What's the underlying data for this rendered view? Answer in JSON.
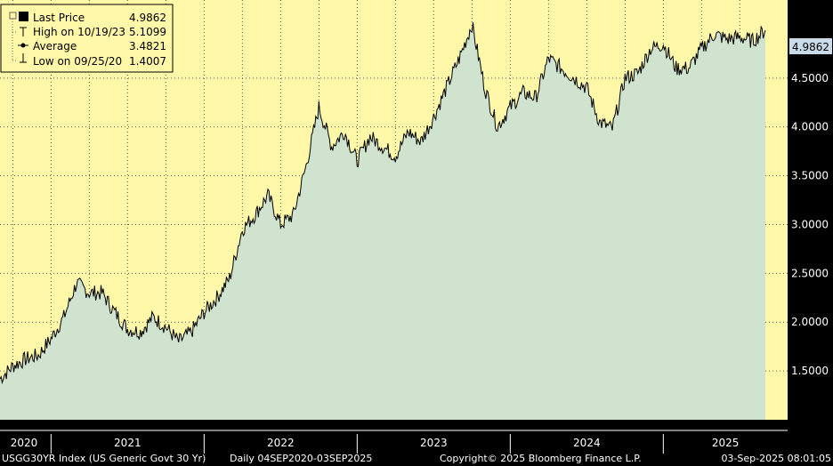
{
  "colors": {
    "background": "#000000",
    "plot_bg": "#fff8a8",
    "area_fill": "#cfe3cf",
    "line": "#000000",
    "grid": "#555555",
    "last_label_bg": "#c9dbe8",
    "legend_bg": "#fff8a8"
  },
  "legend": {
    "rows": [
      {
        "icon": "square-icon",
        "label": "Last Price",
        "value": "4.9862"
      },
      {
        "icon": "high-marker-icon",
        "label": "High on 10/19/23",
        "value": "5.1099"
      },
      {
        "icon": "average-marker-icon",
        "label": "Average",
        "value": "3.4821"
      },
      {
        "icon": "low-marker-icon",
        "label": "Low on 09/25/20",
        "value": "1.4007"
      }
    ]
  },
  "last_price_label": "4.9862",
  "footer": {
    "index": "USGG30YR Index (US Generic Govt 30 Yr)",
    "range": "Daily 04SEP2020-03SEP2025",
    "copyright": "Copyright© 2025 Bloomberg Finance L.P.",
    "timestamp": "03-Sep-2025 08:01:05"
  },
  "chart_data": {
    "type": "area",
    "grid": true,
    "ylim": [
      1.0,
      5.3
    ],
    "yticks": [
      "1.5000",
      "2.0000",
      "2.5000",
      "3.0000",
      "3.5000",
      "4.0000",
      "4.5000",
      "4.9862"
    ],
    "year_labels": [
      "2020",
      "2021",
      "2022",
      "2023",
      "2024",
      "2025"
    ],
    "series": [
      {
        "x": [
          "2020-09",
          "2020-10",
          "2020-11",
          "2020-12",
          "2021-01",
          "2021-02",
          "2021-03",
          "2021-04",
          "2021-05",
          "2021-06",
          "2021-07",
          "2021-08",
          "2021-09",
          "2021-10",
          "2021-11",
          "2021-12",
          "2022-01",
          "2022-02",
          "2022-03",
          "2022-04",
          "2022-05",
          "2022-06",
          "2022-07",
          "2022-08",
          "2022-09",
          "2022-10",
          "2022-11",
          "2022-12",
          "2023-01",
          "2023-02",
          "2023-03",
          "2023-04",
          "2023-05",
          "2023-06",
          "2023-07",
          "2023-08",
          "2023-09",
          "2023-10",
          "2023-11",
          "2023-12",
          "2024-01",
          "2024-02",
          "2024-03",
          "2024-04",
          "2024-05",
          "2024-06",
          "2024-07",
          "2024-08",
          "2024-09",
          "2024-10",
          "2024-11",
          "2024-12",
          "2025-01",
          "2025-02",
          "2025-03",
          "2025-04",
          "2025-05",
          "2025-06",
          "2025-07",
          "2025-08",
          "2025-09"
        ],
        "values": [
          1.42,
          1.55,
          1.62,
          1.66,
          1.83,
          2.05,
          2.4,
          2.3,
          2.3,
          2.1,
          1.93,
          1.9,
          2.05,
          1.95,
          1.8,
          1.9,
          2.1,
          2.25,
          2.45,
          2.95,
          3.1,
          3.3,
          3.0,
          3.1,
          3.6,
          4.2,
          3.8,
          3.95,
          3.65,
          3.9,
          3.8,
          3.7,
          3.95,
          3.85,
          4.1,
          4.4,
          4.7,
          5.05,
          4.4,
          4.0,
          4.2,
          4.35,
          4.3,
          4.7,
          4.6,
          4.5,
          4.4,
          4.05,
          3.98,
          4.5,
          4.55,
          4.8,
          4.85,
          4.6,
          4.6,
          4.8,
          4.95,
          4.9,
          4.92,
          4.88,
          4.99
        ]
      }
    ]
  }
}
